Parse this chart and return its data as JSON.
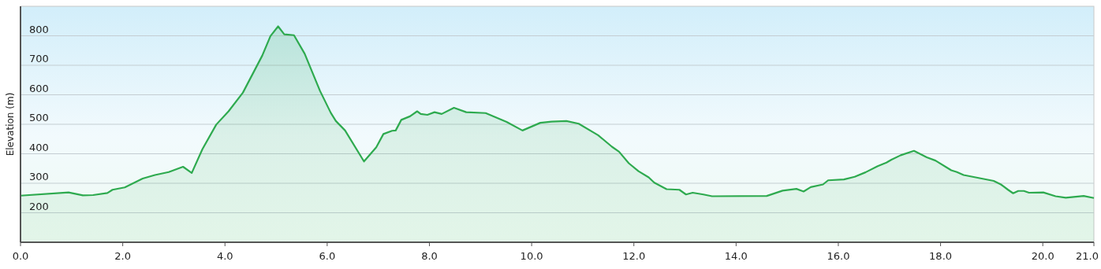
{
  "chart_data": {
    "type": "area",
    "ylabel": "Elevation (m)",
    "color": "#2eaa4f",
    "grid": "y",
    "marker": "none",
    "xlim": [
      0,
      21
    ],
    "ylim": [
      100,
      900
    ],
    "xticks": [
      {
        "value": 0,
        "label": "0.0"
      },
      {
        "value": 2,
        "label": "2.0"
      },
      {
        "value": 4,
        "label": "4.0"
      },
      {
        "value": 6,
        "label": "6.0"
      },
      {
        "value": 8,
        "label": "8.0"
      },
      {
        "value": 10,
        "label": "10.0"
      },
      {
        "value": 12,
        "label": "12.0"
      },
      {
        "value": 14,
        "label": "14.0"
      },
      {
        "value": 16,
        "label": "16.0"
      },
      {
        "value": 18,
        "label": "18.0"
      },
      {
        "value": 20,
        "label": "20.0"
      },
      {
        "value": 21,
        "label": "21.0"
      }
    ],
    "yticks": [
      200,
      300,
      400,
      500,
      600,
      700,
      800
    ],
    "x": [
      0,
      0.94,
      1.22,
      1.42,
      1.7,
      1.8,
      2.04,
      2.39,
      2.63,
      2.9,
      3.18,
      3.35,
      3.56,
      3.83,
      4.07,
      4.35,
      4.73,
      4.89,
      5.04,
      5.16,
      5.35,
      5.56,
      5.86,
      6.07,
      6.17,
      6.35,
      6.72,
      6.96,
      7.1,
      7.27,
      7.34,
      7.45,
      7.62,
      7.76,
      7.83,
      7.96,
      8.1,
      8.24,
      8.48,
      8.72,
      9.1,
      9.51,
      9.82,
      10.17,
      10.39,
      10.68,
      10.92,
      11.3,
      11.57,
      11.71,
      11.9,
      12.09,
      12.29,
      12.4,
      12.64,
      12.89,
      13.02,
      13.15,
      13.36,
      13.53,
      14.6,
      14.91,
      15.18,
      15.32,
      15.46,
      15.7,
      15.8,
      16.11,
      16.32,
      16.53,
      16.77,
      16.94,
      17.04,
      17.22,
      17.48,
      17.73,
      17.9,
      18.21,
      18.32,
      18.45,
      19.04,
      19.18,
      19.32,
      19.42,
      19.52,
      19.63,
      19.73,
      20.01,
      20.25,
      20.45,
      20.8,
      21
    ],
    "values": [
      258,
      269,
      259,
      260,
      267,
      278,
      286,
      316,
      328,
      338,
      356,
      335,
      416,
      499,
      544,
      607,
      733,
      799,
      832,
      805,
      802,
      739,
      613,
      539,
      511,
      479,
      374,
      422,
      467,
      478,
      479,
      515,
      527,
      544,
      535,
      532,
      541,
      535,
      556,
      541,
      538,
      508,
      479,
      505,
      509,
      511,
      502,
      463,
      424,
      407,
      368,
      341,
      320,
      302,
      280,
      278,
      262,
      268,
      262,
      256,
      257,
      275,
      281,
      272,
      287,
      296,
      310,
      313,
      322,
      337,
      358,
      370,
      380,
      395,
      410,
      388,
      377,
      344,
      338,
      328,
      308,
      296,
      278,
      266,
      274,
      274,
      268,
      269,
      256,
      251,
      257,
      250
    ]
  }
}
